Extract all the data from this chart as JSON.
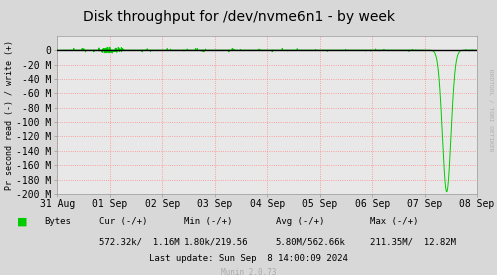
{
  "title": "Disk throughput for /dev/nvme6n1 - by week",
  "ylabel": "Pr second read (-) / write (+)",
  "background_color": "#d8d8d8",
  "plot_bg_color": "#e8e8e8",
  "grid_color_major": "#ff8888",
  "grid_color_minor": "#ddbbbb",
  "line_color": "#00cc00",
  "ylim": [
    -200,
    20
  ],
  "yticks": [
    0,
    -20,
    -40,
    -60,
    -80,
    -100,
    -120,
    -140,
    -160,
    -180,
    -200
  ],
  "ytick_labels": [
    "0",
    "-20 M",
    "-40 M",
    "-60 M",
    "-80 M",
    "-100 M",
    "-120 M",
    "-140 M",
    "-160 M",
    "-180 M",
    "-200 M"
  ],
  "xticklabels": [
    "31 Aug",
    "01 Sep",
    "02 Sep",
    "03 Sep",
    "04 Sep",
    "05 Sep",
    "06 Sep",
    "07 Sep",
    "08 Sep"
  ],
  "legend_label": "Bytes",
  "legend_color": "#00cc00",
  "footer_cur_header": "Cur (-/+)",
  "footer_min_header": "Min (-/+)",
  "footer_avg_header": "Avg (-/+)",
  "footer_max_header": "Max (-/+)",
  "footer_bytes_label": "Bytes",
  "footer_cur_val": "572.32k/  1.16M",
  "footer_min_val": "1.80k/219.56",
  "footer_avg_val": "5.80M/562.66k",
  "footer_max_val": "211.35M/  12.82M",
  "footer_lastupdate": "Last update: Sun Sep  8 14:00:09 2024",
  "footer_munin": "Munin 2.0.73",
  "rrdtool_text": "RRDTOOL / TOBI OETIKER",
  "title_fontsize": 10,
  "axis_fontsize": 7,
  "footer_fontsize": 6.5
}
